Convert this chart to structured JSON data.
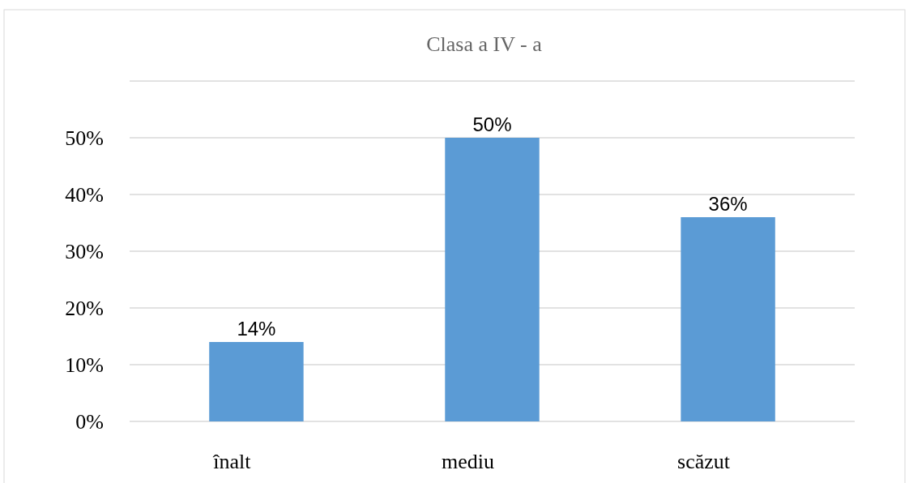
{
  "chart_data": {
    "type": "bar",
    "title": "Clasa a IV - a",
    "categories": [
      "înalt",
      "mediu",
      "scăzut"
    ],
    "values": [
      14,
      50,
      36
    ],
    "value_labels": [
      "14%",
      "50%",
      "36%"
    ],
    "color": "#5b9bd5",
    "ylim": [
      0,
      60
    ],
    "yticks": [
      {
        "value": 0,
        "label": "0%"
      },
      {
        "value": 10,
        "label": "10%"
      },
      {
        "value": 20,
        "label": "20%"
      },
      {
        "value": 30,
        "label": "30%"
      },
      {
        "value": 40,
        "label": "40%"
      },
      {
        "value": 50,
        "label": "50%"
      },
      {
        "value": 60,
        "label": null
      }
    ],
    "grid": "y"
  }
}
